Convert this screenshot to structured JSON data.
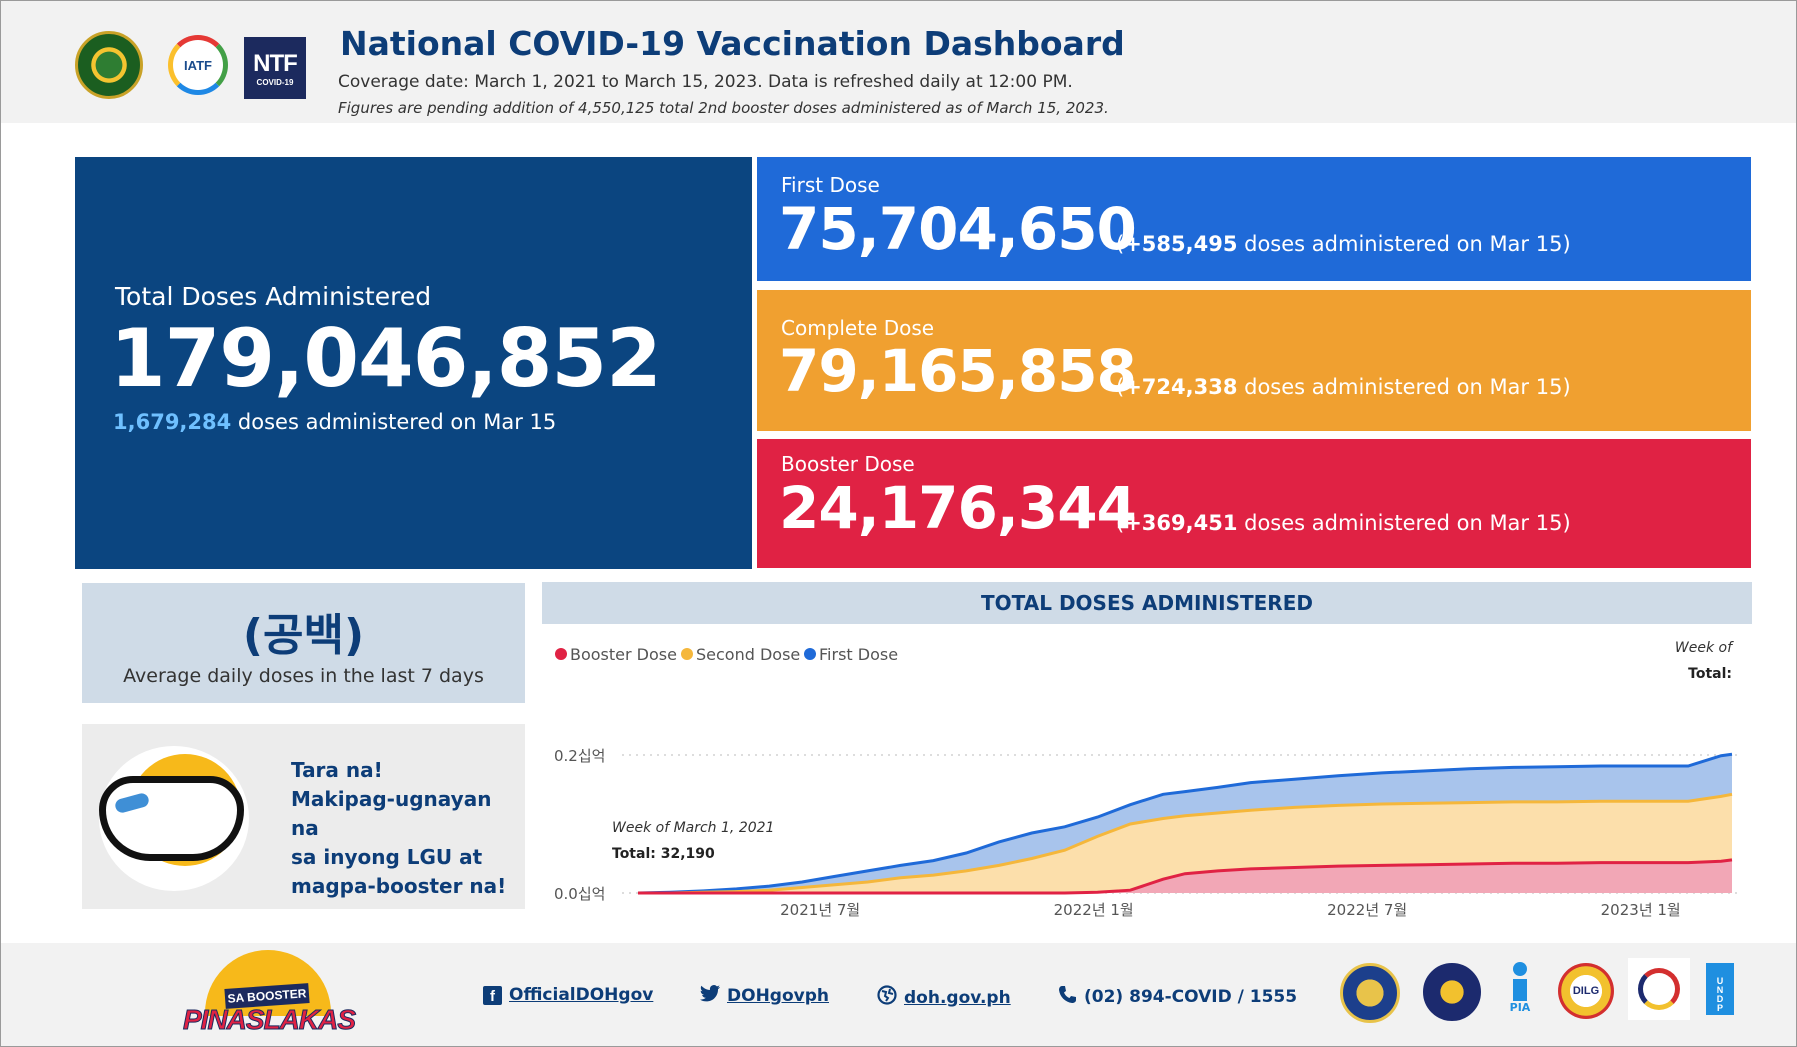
{
  "header": {
    "title": "National COVID-19 Vaccination Dashboard",
    "subtitle": "Coverage date: March 1, 2021 to March 15, 2023. Data is refreshed daily at 12:00 PM.",
    "note": "Figures are pending addition of 4,550,125 total 2nd booster doses administered as of March 15, 2023.",
    "logos": {
      "iatf": "IATF",
      "ntf": "NTF",
      "ntf_sub": "COVID-19"
    }
  },
  "total": {
    "label": "Total Doses Administered",
    "value": "179,046,852",
    "daily": "1,679,284",
    "daily_suffix": " doses administered on Mar 15"
  },
  "doses": {
    "first": {
      "label": "First Dose",
      "value": "75,704,650",
      "inc": "+585,495",
      "suffix": " doses administered on Mar 15)"
    },
    "complete": {
      "label": "Complete Dose",
      "value": "79,165,858",
      "inc": "+724,338",
      "suffix": " doses administered on Mar 15)"
    },
    "booster": {
      "label": "Booster Dose",
      "value": "24,176,344",
      "inc": "+369,451",
      "suffix": " doses administered on Mar 15)"
    }
  },
  "average": {
    "value": "(공백)",
    "label": "Average daily doses in the last 7 days"
  },
  "promo": {
    "line1": "Tara na!",
    "line2": "Makipag-ugnayan na",
    "line3": "sa inyong LGU at",
    "line4": "magpa-booster na!"
  },
  "chart_data": {
    "type": "area",
    "title": "TOTAL DOSES ADMINISTERED",
    "legend": [
      "Booster Dose",
      "Second Dose",
      "First Dose"
    ],
    "tooltip_week_label": "Week of",
    "tooltip_total_label": "Total:",
    "annotation": {
      "week": "Week of March 1, 2021",
      "total": "Total: 32,190"
    },
    "y_ticks": [
      "0.0십억",
      "0.2십억"
    ],
    "ylim": [
      0,
      0.22
    ],
    "x_ticks": [
      "2021년 7월",
      "2022년 1월",
      "2022년 7월",
      "2023년 1월"
    ],
    "x_tick_positions": [
      0.1665,
      0.4165,
      0.6665,
      0.9165
    ],
    "x": [
      0,
      0.03,
      0.06,
      0.09,
      0.12,
      0.15,
      0.18,
      0.21,
      0.24,
      0.27,
      0.3,
      0.33,
      0.36,
      0.39,
      0.42,
      0.45,
      0.48,
      0.5,
      0.53,
      0.56,
      0.6,
      0.64,
      0.68,
      0.72,
      0.76,
      0.8,
      0.84,
      0.88,
      0.92,
      0.96,
      0.99,
      1.0
    ],
    "series": [
      {
        "name": "First Dose",
        "color": "#1f6ad8",
        "fill": "#a8c4ec",
        "values": [
          0.0,
          0.001,
          0.003,
          0.006,
          0.01,
          0.016,
          0.024,
          0.032,
          0.04,
          0.047,
          0.058,
          0.074,
          0.087,
          0.096,
          0.11,
          0.128,
          0.143,
          0.147,
          0.153,
          0.16,
          0.165,
          0.17,
          0.174,
          0.177,
          0.18,
          0.182,
          0.183,
          0.184,
          0.184,
          0.184,
          0.199,
          0.201
        ]
      },
      {
        "name": "Second Dose",
        "color": "#f5b73b",
        "fill": "#fcdfab",
        "values": [
          0.0,
          0.0,
          0.001,
          0.002,
          0.004,
          0.008,
          0.012,
          0.016,
          0.022,
          0.026,
          0.032,
          0.04,
          0.05,
          0.062,
          0.082,
          0.1,
          0.108,
          0.112,
          0.116,
          0.12,
          0.124,
          0.127,
          0.129,
          0.13,
          0.131,
          0.132,
          0.132,
          0.133,
          0.133,
          0.133,
          0.14,
          0.143
        ]
      },
      {
        "name": "Booster Dose",
        "color": "#e02244",
        "fill": "#f2a7b6",
        "values": [
          0.0,
          0.0,
          0.0,
          0.0,
          0.0,
          0.0,
          0.0,
          0.0,
          0.0,
          0.0,
          0.0,
          0.0,
          0.0,
          0.0,
          0.001,
          0.004,
          0.02,
          0.028,
          0.032,
          0.035,
          0.037,
          0.039,
          0.04,
          0.041,
          0.042,
          0.043,
          0.043,
          0.044,
          0.044,
          0.044,
          0.046,
          0.048
        ]
      }
    ]
  },
  "footer": {
    "campaign_small": "SA BOOSTER",
    "campaign_big": "PINASLAKAS",
    "facebook": "OfficialDOHgov",
    "facebook_icon": "f",
    "twitter": "DOHgovph",
    "web": "doh.gov.ph",
    "phone": "(02) 894-COVID / 1555",
    "agency_labels": {
      "pia": "PIA",
      "dilg": "DILG",
      "undp": "U N D P"
    }
  }
}
